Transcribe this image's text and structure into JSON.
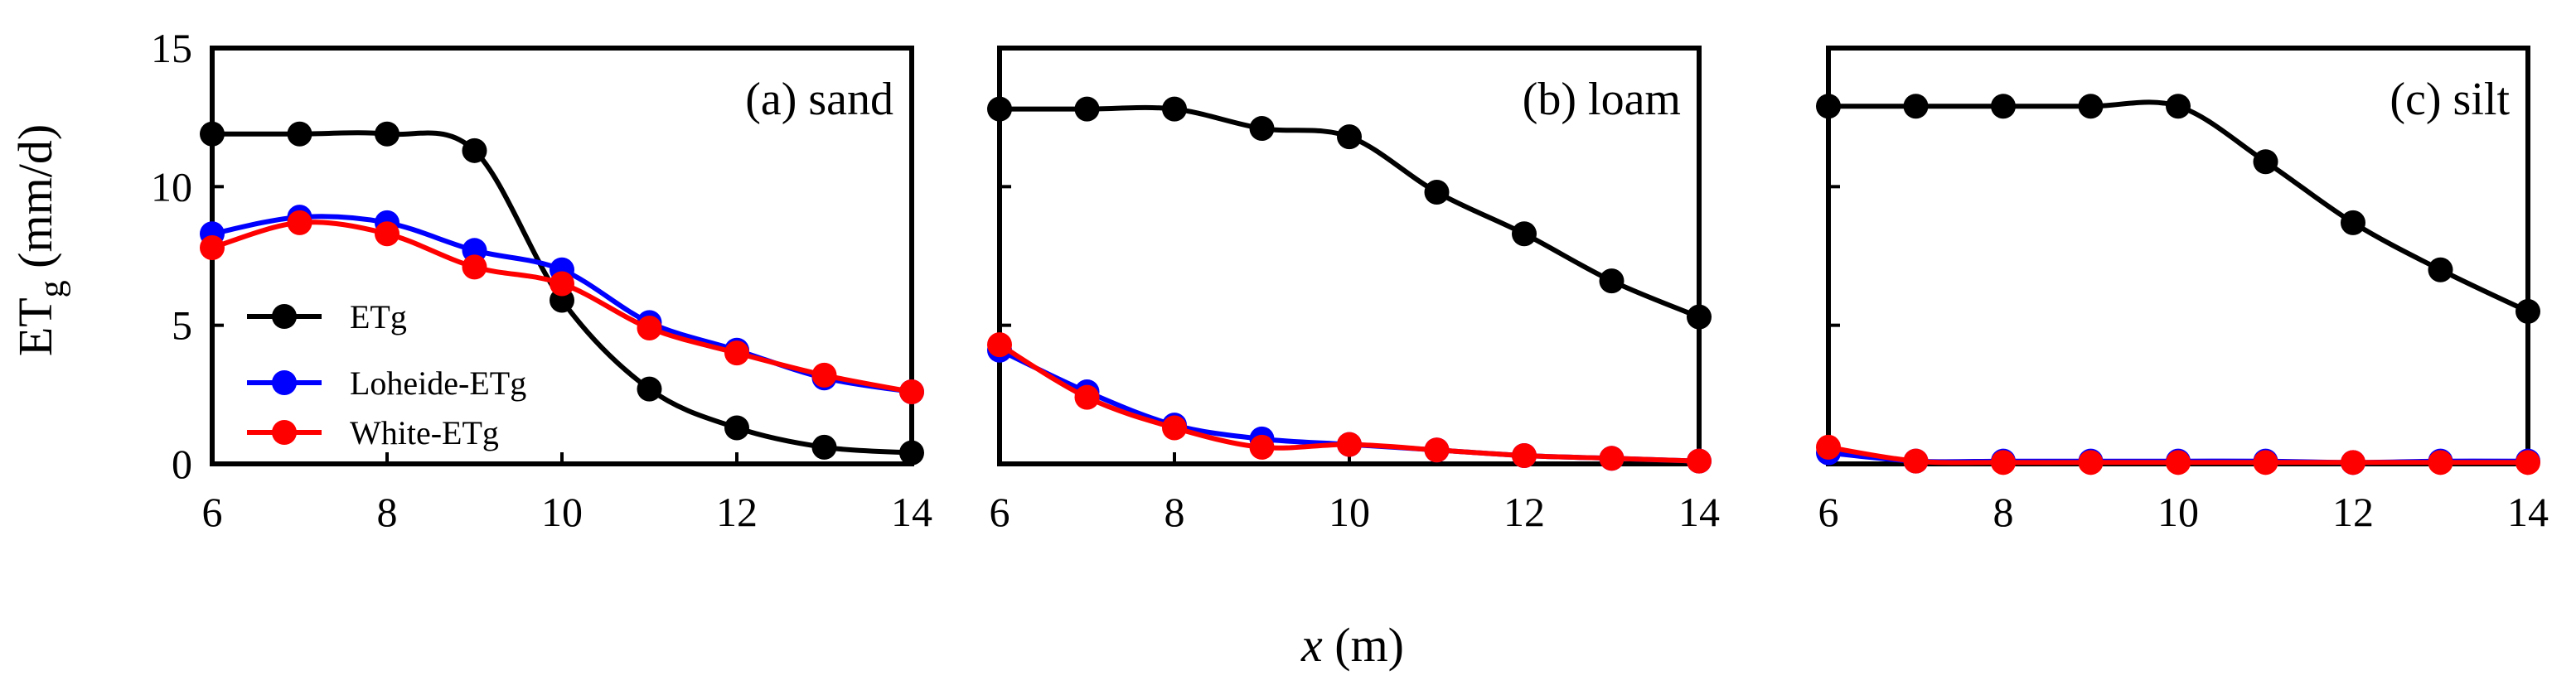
{
  "ylabel": {
    "main": "ET",
    "sub": "g",
    "unit": " (mm/d)"
  },
  "xlabel": {
    "var": "x",
    "unit": " (m)"
  },
  "legend": [
    {
      "label": "ETg",
      "color": "#000000"
    },
    {
      "label": "Loheide-ETg",
      "color": "#0000ff"
    },
    {
      "label": "White-ETg",
      "color": "#ff0000"
    }
  ],
  "chart_data": [
    {
      "type": "line",
      "title": "(a) sand",
      "x": [
        6,
        7,
        8,
        9,
        10,
        11,
        12,
        13,
        14
      ],
      "xlim": [
        6,
        14
      ],
      "ylim": [
        0,
        15
      ],
      "xticks": [
        6,
        8,
        10,
        12,
        14
      ],
      "yticks": [
        0,
        5,
        10,
        15
      ],
      "series": [
        {
          "name": "ETg",
          "color": "#000000",
          "values": [
            11.9,
            11.9,
            11.9,
            11.3,
            5.9,
            2.7,
            1.3,
            0.6,
            0.4
          ]
        },
        {
          "name": "Loheide-ETg",
          "color": "#0000ff",
          "values": [
            8.3,
            8.9,
            8.7,
            7.7,
            7.0,
            5.1,
            4.1,
            3.1,
            2.6
          ]
        },
        {
          "name": "White-ETg",
          "color": "#ff0000",
          "values": [
            7.8,
            8.7,
            8.3,
            7.1,
            6.5,
            4.9,
            4.0,
            3.2,
            2.6
          ]
        }
      ]
    },
    {
      "type": "line",
      "title": "(b) loam",
      "x": [
        6,
        7,
        8,
        9,
        10,
        11,
        12,
        13,
        14
      ],
      "xlim": [
        6,
        14
      ],
      "ylim": [
        0,
        15
      ],
      "xticks": [
        6,
        8,
        10,
        12,
        14
      ],
      "yticks": [
        0,
        5,
        10,
        15
      ],
      "series": [
        {
          "name": "ETg",
          "color": "#000000",
          "values": [
            12.8,
            12.8,
            12.8,
            12.1,
            11.8,
            9.8,
            8.3,
            6.6,
            5.3
          ]
        },
        {
          "name": "Loheide-ETg",
          "color": "#0000ff",
          "values": [
            4.1,
            2.6,
            1.4,
            0.9,
            0.7,
            0.5,
            0.3,
            0.2,
            0.1
          ]
        },
        {
          "name": "White-ETg",
          "color": "#ff0000",
          "values": [
            4.3,
            2.4,
            1.3,
            0.6,
            0.7,
            0.5,
            0.3,
            0.2,
            0.1
          ]
        }
      ]
    },
    {
      "type": "line",
      "title": "(c) silt",
      "x": [
        6,
        7,
        8,
        9,
        10,
        11,
        12,
        13,
        14
      ],
      "xlim": [
        6,
        14
      ],
      "ylim": [
        0,
        15
      ],
      "xticks": [
        6,
        8,
        10,
        12,
        14
      ],
      "yticks": [
        0,
        5,
        10,
        15
      ],
      "series": [
        {
          "name": "ETg",
          "color": "#000000",
          "values": [
            12.9,
            12.9,
            12.9,
            12.9,
            12.9,
            10.9,
            8.7,
            7.0,
            5.5
          ]
        },
        {
          "name": "Loheide-ETg",
          "color": "#0000ff",
          "values": [
            0.4,
            0.1,
            0.1,
            0.1,
            0.1,
            0.1,
            0.05,
            0.1,
            0.1
          ]
        },
        {
          "name": "White-ETg",
          "color": "#ff0000",
          "values": [
            0.6,
            0.1,
            0.05,
            0.05,
            0.05,
            0.05,
            0.05,
            0.05,
            0.05
          ]
        }
      ]
    }
  ]
}
